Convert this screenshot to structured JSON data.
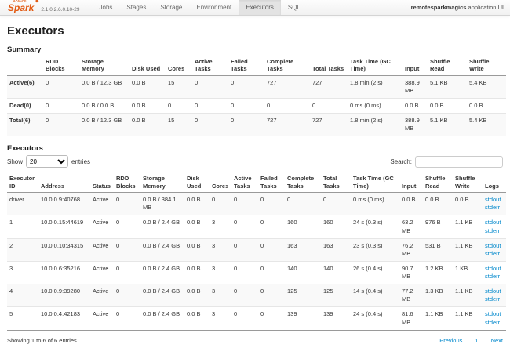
{
  "navbar": {
    "apache": "APACHE",
    "logo": "Spark",
    "star": "✦",
    "version": "2.1.0.2.6.0.10-29",
    "tabs": [
      {
        "label": "Jobs",
        "active": false
      },
      {
        "label": "Stages",
        "active": false
      },
      {
        "label": "Storage",
        "active": false
      },
      {
        "label": "Environment",
        "active": false
      },
      {
        "label": "Executors",
        "active": true
      },
      {
        "label": "SQL",
        "active": false
      }
    ],
    "app_name": "remotesparkmagics",
    "app_suffix": " application UI"
  },
  "page": {
    "title": "Executors"
  },
  "colors": {
    "link": "#0088cc",
    "logo_orange": "#e25a12",
    "active_tab_bg": "#e3e3e3",
    "row_stripe": "#f9f9f9"
  },
  "summary": {
    "heading": "Summary",
    "columns": [
      "",
      "RDD Blocks",
      "Storage Memory",
      "Disk Used",
      "Cores",
      "Active Tasks",
      "Failed Tasks",
      "Complete Tasks",
      "Total Tasks",
      "Task Time (GC Time)",
      "Input",
      "Shuffle Read",
      "Shuffle Write"
    ],
    "rows": [
      [
        "Active(6)",
        "0",
        "0.0 B / 12.3 GB",
        "0.0 B",
        "15",
        "0",
        "0",
        "727",
        "727",
        "1.8 min (2 s)",
        "388.9 MB",
        "5.1 KB",
        "5.4 KB"
      ],
      [
        "Dead(0)",
        "0",
        "0.0 B / 0.0 B",
        "0.0 B",
        "0",
        "0",
        "0",
        "0",
        "0",
        "0 ms (0 ms)",
        "0.0 B",
        "0.0 B",
        "0.0 B"
      ],
      [
        "Total(6)",
        "0",
        "0.0 B / 12.3 GB",
        "0.0 B",
        "15",
        "0",
        "0",
        "727",
        "727",
        "1.8 min (2 s)",
        "388.9 MB",
        "5.1 KB",
        "5.4 KB"
      ]
    ]
  },
  "executors": {
    "heading": "Executors",
    "show_label": "Show",
    "page_size": "20",
    "entries_label": "entries",
    "search_label": "Search:",
    "columns": [
      "Executor ID",
      "Address",
      "Status",
      "RDD Blocks",
      "Storage Memory",
      "Disk Used",
      "Cores",
      "Active Tasks",
      "Failed Tasks",
      "Complete Tasks",
      "Total Tasks",
      "Task Time (GC Time)",
      "Input",
      "Shuffle Read",
      "Shuffle Write",
      "Logs"
    ],
    "rows": [
      {
        "cells": [
          "driver",
          "10.0.0.9:40768",
          "Active",
          "0",
          "0.0 B / 384.1 MB",
          "0.0 B",
          "0",
          "0",
          "0",
          "0",
          "0",
          "0 ms (0 ms)",
          "0.0 B",
          "0.0 B",
          "0.0 B"
        ],
        "logs": [
          "stdout",
          "stderr"
        ]
      },
      {
        "cells": [
          "1",
          "10.0.0.15:44619",
          "Active",
          "0",
          "0.0 B / 2.4 GB",
          "0.0 B",
          "3",
          "0",
          "0",
          "160",
          "160",
          "24 s (0.3 s)",
          "63.2 MB",
          "976 B",
          "1.1 KB"
        ],
        "logs": [
          "stdout",
          "stderr"
        ]
      },
      {
        "cells": [
          "2",
          "10.0.0.10:34315",
          "Active",
          "0",
          "0.0 B / 2.4 GB",
          "0.0 B",
          "3",
          "0",
          "0",
          "163",
          "163",
          "23 s (0.3 s)",
          "76.2 MB",
          "531 B",
          "1.1 KB"
        ],
        "logs": [
          "stdout",
          "stderr"
        ]
      },
      {
        "cells": [
          "3",
          "10.0.0.6:35216",
          "Active",
          "0",
          "0.0 B / 2.4 GB",
          "0.0 B",
          "3",
          "0",
          "0",
          "140",
          "140",
          "26 s (0.4 s)",
          "90.7 MB",
          "1.2 KB",
          "1 KB"
        ],
        "logs": [
          "stdout",
          "stderr"
        ]
      },
      {
        "cells": [
          "4",
          "10.0.0.9:39280",
          "Active",
          "0",
          "0.0 B / 2.4 GB",
          "0.0 B",
          "3",
          "0",
          "0",
          "125",
          "125",
          "14 s (0.4 s)",
          "77.2 MB",
          "1.3 KB",
          "1.1 KB"
        ],
        "logs": [
          "stdout",
          "stderr"
        ]
      },
      {
        "cells": [
          "5",
          "10.0.0.4:42183",
          "Active",
          "0",
          "0.0 B / 2.4 GB",
          "0.0 B",
          "3",
          "0",
          "0",
          "139",
          "139",
          "24 s (0.4 s)",
          "81.6 MB",
          "1.1 KB",
          "1.1 KB"
        ],
        "logs": [
          "stdout",
          "stderr"
        ]
      }
    ],
    "footer": {
      "info": "Showing 1 to 6 of 6 entries",
      "previous": "Previous",
      "page": "1",
      "next": "Next"
    }
  }
}
